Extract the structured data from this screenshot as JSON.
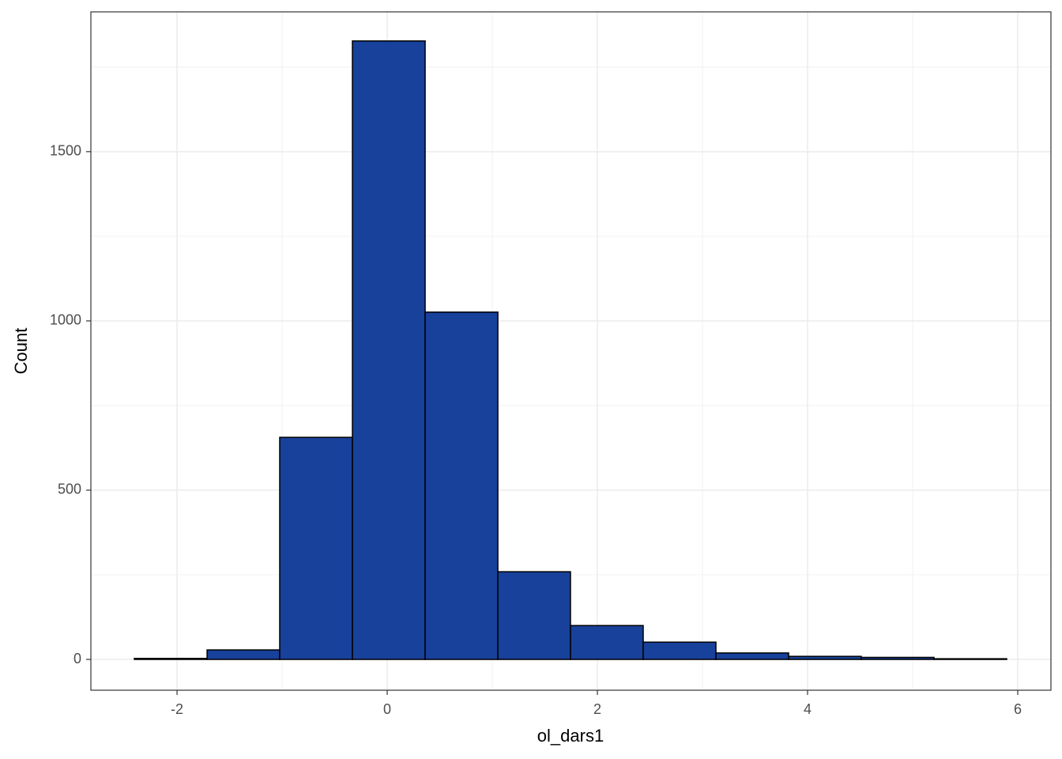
{
  "chart_data": {
    "type": "histogram",
    "x_label": "ol_dars1",
    "y_label": "Count",
    "bins": [
      -2.406,
      -1.714,
      -1.023,
      -0.331,
      0.361,
      1.053,
      1.744,
      2.436,
      3.128,
      3.82,
      4.511,
      5.203,
      5.895
    ],
    "values": [
      3,
      28,
      656,
      1827,
      1026,
      259,
      100,
      51,
      19,
      9,
      6,
      2
    ],
    "color": "#17419a",
    "xlim": [
      -2.82,
      6.316
    ],
    "ylim": [
      -91,
      1913
    ],
    "xticks": [
      -2,
      0,
      2,
      4,
      6
    ],
    "yticks": [
      0,
      500,
      1000,
      1500
    ],
    "grid": true,
    "minor_grid": true
  }
}
